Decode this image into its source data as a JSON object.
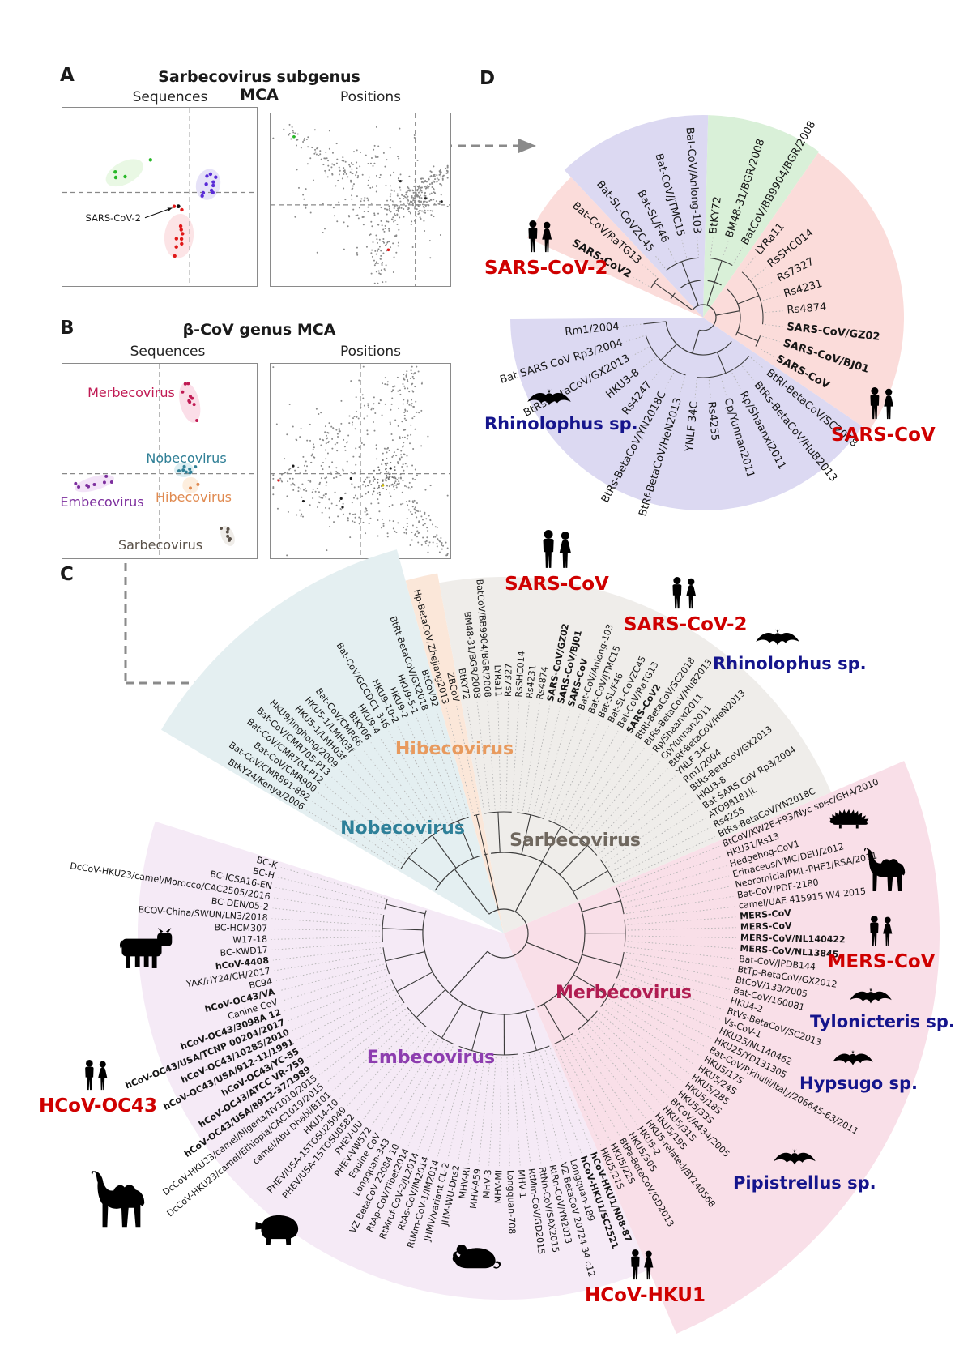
{
  "colors": {
    "red": "#cf0000",
    "navy": "#15158c",
    "arrow": "#8a8a8a"
  },
  "panelA": {
    "letter": "A",
    "title": "Sarbecovirus subgenus MCA",
    "left_subtitle": "Sequences",
    "right_subtitle": "Positions",
    "annotation": "SARS-CoV-2",
    "clusters": [
      {
        "name": "clade-green",
        "color": "#27b827"
      },
      {
        "name": "clade-violet",
        "color": "#5a2bd8"
      },
      {
        "name": "clade-red",
        "color": "#e01818"
      },
      {
        "name": "SARS-CoV-2",
        "color": "#111111"
      }
    ]
  },
  "panelB": {
    "letter": "B",
    "title": "β-CoV genus MCA",
    "left_subtitle": "Sequences",
    "right_subtitle": "Positions",
    "clusters": [
      {
        "name": "Merbecovirus",
        "color": "#c01a53"
      },
      {
        "name": "Nobecovirus",
        "color": "#2f7f96"
      },
      {
        "name": "Hibecovirus",
        "color": "#e08a50"
      },
      {
        "name": "Embecovirus",
        "color": "#7d2f9e"
      },
      {
        "name": "Sarbecovirus",
        "color": "#5a5148"
      }
    ]
  },
  "panelC": {
    "letter": "C",
    "sectors": [
      {
        "name": "Nobecovirus",
        "name_color": "#2e8099",
        "fill": "#e4eff1",
        "taxa": [
          "BtKY24/Kenya/2006",
          "Bat-CoV/CMR891-892",
          "Bat-CoV/CMR900",
          "Bat-CoV/CMR704-P12",
          "Bat-CoV/CMR705-P13",
          "HKU9/Jinghong/2009",
          "HKU5-1/LMH03f",
          "HKU5-1/LMH03f",
          "Bat-CoV/CMR66",
          "BtKY06",
          "HKU9-4",
          "Bat-CoV/GCCDC1 346",
          "HKU9-10-2",
          "HKU9-2",
          "HKU9-5-1",
          "BtRt-BetaCoV/GX2018",
          "BtCoV92"
        ]
      },
      {
        "name": "Hibecovirus",
        "name_color": "#e89a5e",
        "fill": "#fbe7d9",
        "taxa": [
          "Hp-BetaCoV/Zhejiang2013",
          "ZBCoV"
        ]
      },
      {
        "name": "Sarbecovirus",
        "name_color": "#6f675e",
        "fill": "#efedea",
        "taxa": [
          "BtKY72",
          "BM48-31/BGR/2008",
          "BatCoV/BB9904/BGR/2008",
          "LYRa11",
          "Rs7327",
          "RsSHC014",
          "Rs4231",
          "Rs4874",
          "*SARS-CoV/GZ02",
          "*SARS-CoV/BJ01",
          "*SARS-CoV",
          "Bat-CoV/Anlong-103",
          "Bat-CoV/JTMC15",
          "Bat-SL/F46",
          "Bat-SL-CoVZC45",
          "Bat-CoV/RaTG13",
          "*SARS-CoV2",
          "BtRl-BetaCoV/SC2018",
          "BtRs-BetaCoV/HuB2013",
          "Rp/Shaanxi2011",
          "Cp/Yunnan2011",
          "BtRf-BetaCoV/HeN2013",
          "YNLF 34C",
          "Rm1/2004",
          "BtRs-BetaCoV/GX2013",
          "HKU3-8",
          "Bat SARS CoV Rp3/2004",
          "ATO98181|L",
          "Rs4255",
          "BtRs-BetaCoV/YN2018C"
        ]
      },
      {
        "name": "Merbecovirus",
        "name_color": "#b01c51",
        "fill": "#f9dfe8",
        "taxa": [
          "BtCoV/KW2E-F93/Nyc spec/GHA/2010",
          "HKU31/Rs13",
          "Hedgehog-CoV1",
          "Erinaceus/VMC/DEU/2012",
          "Neoromicia/PML-PHE1/RSA/2011",
          "Bat-CoV/PDF-2180",
          "camel/UAE 415915 W4 2015",
          "*MERS-CoV",
          "*MERS-CoV",
          "*MERS-CoV/NL140422",
          "*MERS-CoV/NL13845",
          "Bat-CoV/JPDB144",
          "BtTp-BetaCoV/GX2012",
          "BtCoV/133/2005",
          "Bat-CoV/160081",
          "HKU4-2",
          "BtVs-BetaCoV/SC2013",
          "Vs-CoV-1",
          "HKU25/NL140462",
          "HKU25/YD131305",
          "Bat-CoV/P.khulii/Italy/206645-63/2011",
          "HKU5/17S",
          "HKU5/24S",
          "HKU5/28S",
          "HKU5/18S",
          "HKU5/33S",
          "BtCoV/A434/2005",
          "HKU5/31S",
          "HKU5/19S",
          "HKU5-related/BY140568",
          "HKU5-2",
          "HKU5/30S",
          "BtPa-BetaCoV/GD2013",
          "HKU5/22S",
          "HKU5/21S"
        ]
      },
      {
        "name": "Embecovirus",
        "name_color": "#8d3daf",
        "fill": "#f5eaf6",
        "taxa": [
          "*hCoV-HKU1/N08-87",
          "*hCoV-HKU1/SC2521",
          "Longquan-189",
          "VZ BetaCoV 20724 34 c12",
          "RtRn-CoV/YN2013",
          "RtNn-CoV/SAX2015",
          "RtMm-CoV/GD2015",
          "MHV-1",
          "Longquan-708",
          "MHV-MI",
          "MHV-3",
          "MHV-A59",
          "MHV-RI",
          "JHM-WU-Dns2",
          "JHMV/variant CL-2",
          "RtMm-CoV-1/IM2014",
          "RtAs-CoV/IM2014",
          "RtMruf-CoV-2/JL2014",
          "RtAp-CoV/Tibet2014",
          "VZ BetaCoV 22084 10",
          "Longquan-343",
          "Equine CoV",
          "PHEV-VW572",
          "PHEV-UU",
          "PHEV/USA-15TOSU0582",
          "PHEV/USA-15TOSU25049",
          "HKU14-10",
          "camel/Abu Dhabi/B101",
          "DcCoV-HKU23/camel/Ethiopia/CAC1019/2015",
          "DcCoV-HKU23/camel/Nigeria/NV1010/2015",
          "*hCoV-OC43/USA/8912-37/1989",
          "*hCoV-OC43/ATCC VR-759",
          "*hCoV-OC43/YC-55",
          "*hCoV-OC43/USA/912-11/1991",
          "*hCoV-OC43/10285/2010",
          "*hCoV-OC43/USA/TCNP 00204/2017",
          "*hCoV-OC43/3098A 12",
          "Canine CoV",
          "*hCoV-OC43/VA",
          "BC94",
          "YAK/HY24/CH/2017",
          "*hCoV-4408",
          "BC-KWD17",
          "W17-18",
          "BC-HCM307",
          "BCOV-China/SWUN/LN3/2018",
          "BC-DEN/05-2",
          "DcCoV-HKU23/camel/Morocco/CAC2505/2016",
          "BC-ICSA16-EN",
          "BC-H",
          "BC-K"
        ]
      }
    ],
    "ann": {
      "sars_cov": {
        "text": "SARS-CoV",
        "color": "#cf0000"
      },
      "sars_cov2": {
        "text": "SARS-CoV-2",
        "color": "#cf0000"
      },
      "rhinolophus": {
        "text": "Rhinolophus sp.",
        "color": "#15158c"
      },
      "mers": {
        "text": "MERS-CoV",
        "color": "#cf0000"
      },
      "tylonicteris": {
        "text": "Tylonicteris sp.",
        "color": "#15158c"
      },
      "hypsugo": {
        "text": "Hypsugo sp.",
        "color": "#15158c"
      },
      "pipistrellus": {
        "text": "Pipistrellus sp.",
        "color": "#15158c"
      },
      "hku1": {
        "text": "HCoV-HKU1",
        "color": "#cf0000"
      },
      "oc43": {
        "text": "HCoV-OC43",
        "color": "#cf0000"
      }
    }
  },
  "panelD": {
    "letter": "D",
    "sectors": [
      {
        "fill": "#fbdcda",
        "taxa": [
          "*SARS-CoV2",
          "Bat-CoV/RaTG13"
        ]
      },
      {
        "fill": "#dcd9f2",
        "taxa": [
          "Bat-SL-CoVZC45",
          "Bat-SL/F46",
          "Bat-CoV/JTMC15",
          "Bat-CoV/Anlong-103"
        ]
      },
      {
        "fill": "#d9f0d8",
        "taxa": [
          "BtKY72",
          "BM48-31/BGR/2008",
          "BatCoV/BB9904/BGR/2008"
        ]
      },
      {
        "fill": "#fbdcda",
        "taxa": [
          "LYRa11",
          "RsSHC014",
          "Rs7327",
          "Rs4231",
          "Rs4874",
          "*SARS-CoV/GZ02",
          "*SARS-CoV/BJ01",
          "*SARS-CoV"
        ]
      },
      {
        "fill": "#dcd9f2",
        "taxa": [
          "BtRl-BetaCoV/SC2018",
          "BtRs-BetaCoV/HuB2013",
          "Rp/Shaanxi2011",
          "Cp/Yunnan2011",
          "Rs4255",
          "YNLF 34C",
          "BtRf-BetaCoV/HeN2013",
          "BtRs-BetaCoV/YN2018C",
          "Rs4247",
          "HKU3-8",
          "BtRs-BetaCoV/GX2013",
          "Bat SARS CoV Rp3/2004",
          "Rm1/2004"
        ]
      }
    ],
    "ann": {
      "sars_cov2": {
        "text": "SARS-CoV-2",
        "color": "#cf0000"
      },
      "sars_cov": {
        "text": "SARS-CoV",
        "color": "#cf0000"
      },
      "rhinolophus": {
        "text": "Rhinolophus sp.",
        "color": "#15158c"
      }
    }
  }
}
